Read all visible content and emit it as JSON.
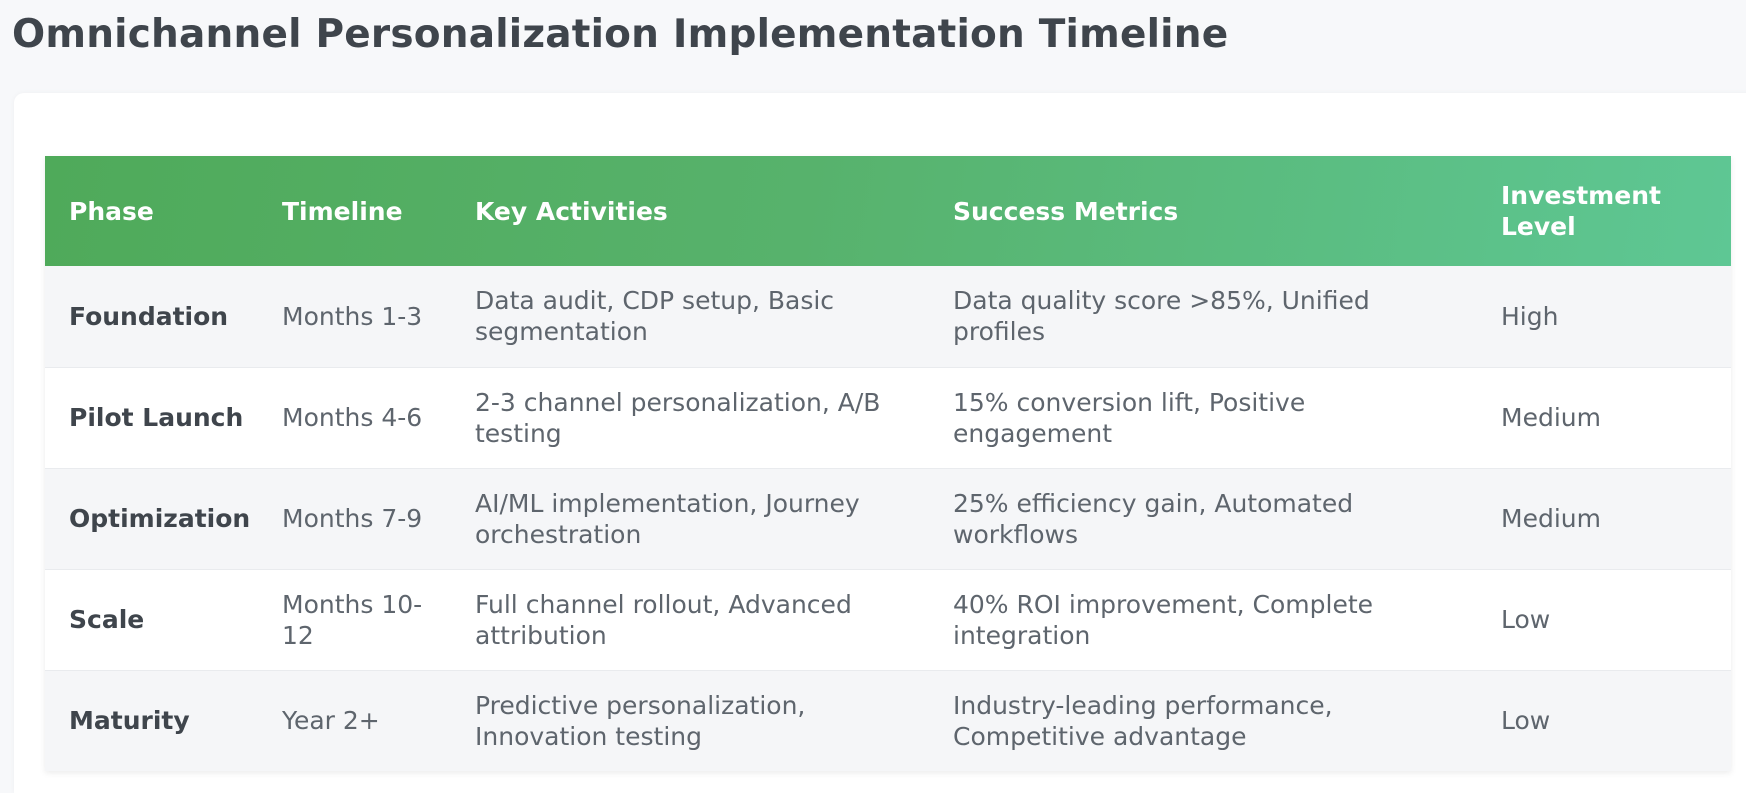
{
  "page": {
    "title": "Omnichannel Personalization Implementation Timeline"
  },
  "table": {
    "headers": {
      "phase": "Phase",
      "timeline": "Timeline",
      "activities": "Key Activities",
      "metrics": "Success Metrics",
      "investment": "Investment Level"
    },
    "rows": [
      {
        "phase": "Foundation",
        "timeline": "Months 1-3",
        "activities": "Data audit, CDP setup, Basic segmentation",
        "metrics": "Data quality score >85%, Unified profiles",
        "investment": "High"
      },
      {
        "phase": "Pilot Launch",
        "timeline": "Months 4-6",
        "activities": "2-3 channel personalization, A/B testing",
        "metrics": "15% conversion lift, Positive engagement",
        "investment": "Medium"
      },
      {
        "phase": "Optimization",
        "timeline": "Months 7-9",
        "activities": "AI/ML implementation, Journey orchestration",
        "metrics": "25% efficiency gain, Automated workflows",
        "investment": "Medium"
      },
      {
        "phase": "Scale",
        "timeline": "Months 10-12",
        "activities": "Full channel rollout, Advanced attribution",
        "metrics": "40% ROI improvement, Complete integration",
        "investment": "Low"
      },
      {
        "phase": "Maturity",
        "timeline": "Year 2+",
        "activities": "Predictive personalization, Innovation testing",
        "metrics": "Industry-leading performance, Competitive advantage",
        "investment": "Low"
      }
    ]
  },
  "colors": {
    "header_gradient_start": "#4faa5a",
    "header_gradient_end": "#5ec794",
    "title_text": "#3f454c",
    "body_text": "#5e656d"
  }
}
